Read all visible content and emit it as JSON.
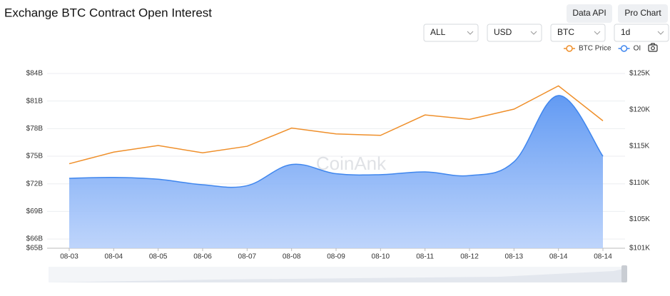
{
  "header": {
    "title": "Exchange BTC Contract Open Interest",
    "buttons": [
      "Data API",
      "Pro Chart"
    ]
  },
  "controls": [
    "ALL",
    "USD",
    "BTC",
    "1d"
  ],
  "watermark": "CoinAnk",
  "chart_data": {
    "type": "area-line",
    "categories": [
      "08-03",
      "08-04",
      "08-05",
      "08-06",
      "08-07",
      "08-08",
      "08-09",
      "08-10",
      "08-11",
      "08-12",
      "08-13",
      "08-14",
      "08-14"
    ],
    "series": [
      {
        "name": "BTC Price",
        "color": "#ef8f2a",
        "axis": "y2",
        "values": [
          112.6,
          114.2,
          115.1,
          114.1,
          115.0,
          117.5,
          116.7,
          116.5,
          119.3,
          118.7,
          120.1,
          123.3,
          118.5
        ]
      },
      {
        "name": "OI",
        "color": "#3f86ee",
        "axis": "y",
        "values": [
          72.6,
          72.7,
          72.5,
          71.9,
          71.8,
          74.1,
          73.1,
          73.0,
          73.3,
          72.9,
          74.4,
          81.6,
          75.0
        ]
      }
    ],
    "ylim": [
      65,
      84
    ],
    "yticks": [
      {
        "value": 65,
        "label": "$65B"
      },
      {
        "value": 66,
        "label": "$66B"
      },
      {
        "value": 69,
        "label": "$69B"
      },
      {
        "value": 72,
        "label": "$72B"
      },
      {
        "value": 75,
        "label": "$75B"
      },
      {
        "value": 78,
        "label": "$78B"
      },
      {
        "value": 81,
        "label": "$81B"
      },
      {
        "value": 84,
        "label": "$84B"
      }
    ],
    "y2lim": [
      101,
      125
    ],
    "y2ticks": [
      {
        "value": 101,
        "label": "$101K"
      },
      {
        "value": 105,
        "label": "$105K"
      },
      {
        "value": 110,
        "label": "$110K"
      },
      {
        "value": 115,
        "label": "$115K"
      },
      {
        "value": 120,
        "label": "$120K"
      },
      {
        "value": 125,
        "label": "$125K"
      }
    ],
    "grid": true
  }
}
